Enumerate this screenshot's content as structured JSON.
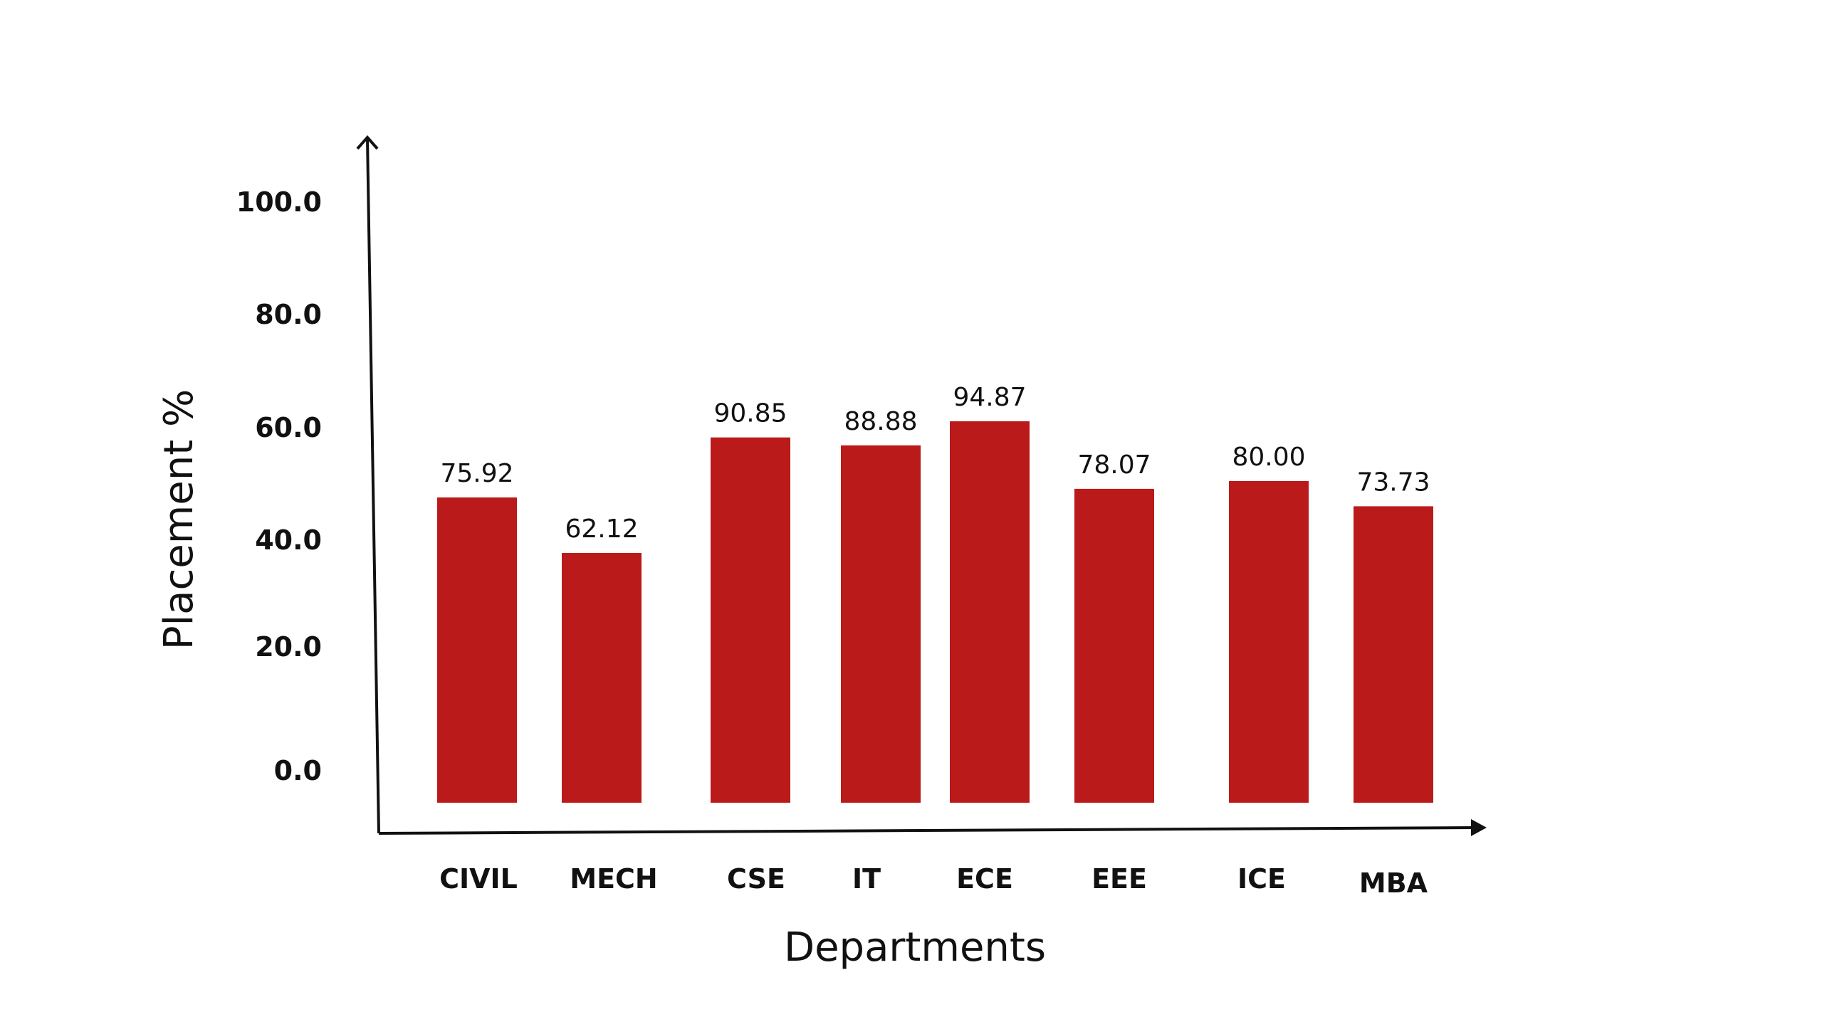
{
  "chart_data": {
    "type": "bar",
    "title": "",
    "xlabel": "Departments",
    "ylabel": "Placement %",
    "categories": [
      "CIVIL",
      "MECH",
      "CSE",
      "IT",
      "ECE",
      "EEE",
      "ICE",
      "MBA"
    ],
    "values": [
      75.92,
      62.12,
      90.85,
      88.88,
      94.87,
      78.07,
      80.0,
      73.73
    ],
    "value_labels": [
      "75.92",
      "62.12",
      "90.85",
      "88.88",
      "94.87",
      "78.07",
      "80.00",
      "73.73"
    ],
    "yticks": [
      0,
      20,
      40,
      60,
      80,
      100
    ],
    "ytick_labels": [
      "0.0",
      "20.0",
      "40.0",
      "60.0",
      "80.0",
      "100.0"
    ],
    "ylim": [
      0,
      100
    ],
    "bar_color": "#bb1a1a",
    "grid": false,
    "legend": "none"
  }
}
